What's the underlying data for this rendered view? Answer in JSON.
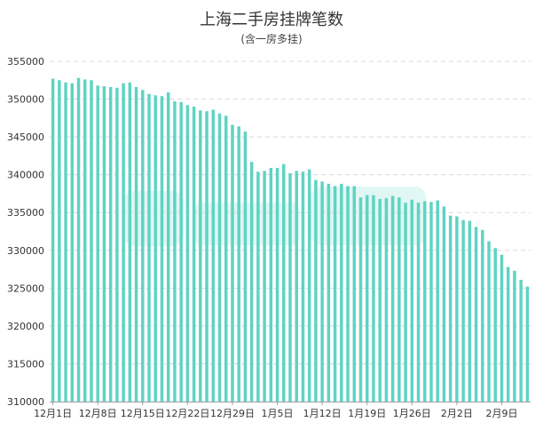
{
  "chart_data": {
    "type": "bar",
    "title": "上海二手房挂牌笔数",
    "subtitle": "(含一房多挂)",
    "xlabel": "",
    "ylabel": "",
    "ylim": [
      310000,
      355000
    ],
    "yticks": [
      310000,
      315000,
      320000,
      325000,
      330000,
      335000,
      340000,
      345000,
      350000,
      355000
    ],
    "xtick_labels": [
      "12月1日",
      "12月8日",
      "12月15日",
      "12月22日",
      "12月29日",
      "1月5日",
      "1月12日",
      "1月19日",
      "1月26日",
      "2月2日",
      "2月9日"
    ],
    "grid": true,
    "legend": "none",
    "bar_color": "#5fd3c3",
    "values": [
      352700,
      352500,
      352200,
      352100,
      352800,
      352600,
      352500,
      351800,
      351700,
      351600,
      351500,
      352100,
      352200,
      351600,
      351200,
      350700,
      350500,
      350400,
      350900,
      349700,
      349600,
      349200,
      349000,
      348500,
      348400,
      348600,
      348100,
      347800,
      346600,
      346400,
      345700,
      341700,
      340400,
      340500,
      340900,
      340900,
      341400,
      340200,
      340500,
      340400,
      340700,
      339300,
      339100,
      338800,
      338500,
      338800,
      338500,
      338500,
      337000,
      337300,
      337300,
      336800,
      336900,
      337200,
      337000,
      336300,
      336700,
      336300,
      336500,
      336400,
      336600,
      335800,
      334600,
      334500,
      334000,
      333900,
      333100,
      332700,
      331200,
      330300,
      329400,
      327800,
      327300,
      326100,
      325200
    ]
  }
}
